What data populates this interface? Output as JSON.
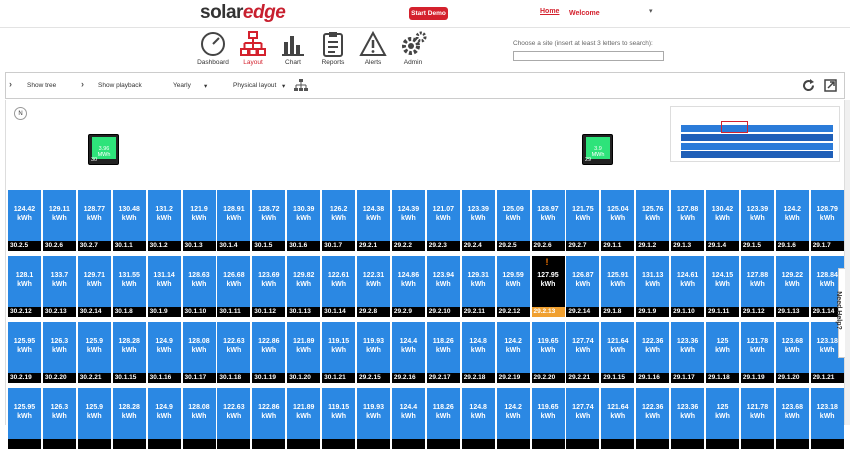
{
  "header": {
    "logo_a": "solar",
    "logo_b": "edge",
    "demo_label": "Start Demo",
    "home_label": "Home",
    "welcome_label": "Welcome",
    "caret": "▾"
  },
  "nav": {
    "items": [
      {
        "label": "Dashboard",
        "icon": "gauge-icon"
      },
      {
        "label": "Layout",
        "icon": "layout-tree-icon"
      },
      {
        "label": "Chart",
        "icon": "bar-chart-icon"
      },
      {
        "label": "Reports",
        "icon": "clipboard-icon"
      },
      {
        "label": "Alerts",
        "icon": "warning-triangle-icon"
      },
      {
        "label": "Admin",
        "icon": "gears-icon"
      }
    ],
    "active": "Layout"
  },
  "site_search": {
    "label": "Choose a site (insert at least 3 letters to search):",
    "value": ""
  },
  "toolbar": {
    "show_tree": "Show tree",
    "show_playback": "Show playback",
    "period": "Yearly",
    "layout_mode": "Physical layout",
    "chev": "›",
    "down": "▾"
  },
  "compass_label": "N",
  "inverters": [
    {
      "energy": "3.96",
      "unit": "MWh",
      "id": "30"
    },
    {
      "energy": "3.9",
      "unit": "MWh",
      "id": "29"
    }
  ],
  "zoom": {
    "center": "⊕",
    "minus": "−",
    "plus": "+"
  },
  "help_label": "Need Help?",
  "panel_unit": "kWh",
  "panels": [
    [
      [
        "124.42",
        "30.2.5"
      ],
      [
        "129.11",
        "30.2.6"
      ],
      [
        "128.77",
        "30.2.7"
      ],
      [
        "130.48",
        "30.1.1"
      ],
      [
        "131.2",
        "30.1.2"
      ],
      [
        "121.9",
        "30.1.3"
      ],
      [
        "128.91",
        "30.1.4"
      ],
      [
        "128.72",
        "30.1.5"
      ],
      [
        "130.39",
        "30.1.6"
      ],
      [
        "126.2",
        "30.1.7"
      ],
      [
        "124.38",
        "29.2.1"
      ],
      [
        "124.39",
        "29.2.2"
      ],
      [
        "121.07",
        "29.2.3"
      ],
      [
        "123.39",
        "29.2.4"
      ],
      [
        "125.09",
        "29.2.5"
      ],
      [
        "128.97",
        "29.2.6"
      ],
      [
        "121.75",
        "29.2.7"
      ],
      [
        "125.04",
        "29.1.1"
      ],
      [
        "125.76",
        "29.1.2"
      ],
      [
        "127.88",
        "29.1.3"
      ],
      [
        "130.42",
        "29.1.4"
      ],
      [
        "123.39",
        "29.1.5"
      ],
      [
        "124.2",
        "29.1.6"
      ],
      [
        "128.79",
        "29.1.7"
      ]
    ],
    [
      [
        "128.1",
        "30.2.12"
      ],
      [
        "133.7",
        "30.2.13"
      ],
      [
        "129.71",
        "30.2.14"
      ],
      [
        "131.55",
        "30.1.8"
      ],
      [
        "131.14",
        "30.1.9"
      ],
      [
        "128.63",
        "30.1.10"
      ],
      [
        "126.68",
        "30.1.11"
      ],
      [
        "123.69",
        "30.1.12"
      ],
      [
        "129.82",
        "30.1.13"
      ],
      [
        "122.61",
        "30.1.14"
      ],
      [
        "122.31",
        "29.2.8"
      ],
      [
        "124.86",
        "29.2.9"
      ],
      [
        "123.94",
        "29.2.10"
      ],
      [
        "129.31",
        "29.2.11"
      ],
      [
        "129.59",
        "29.2.12"
      ],
      [
        "127.95",
        "29.2.13",
        "warn"
      ],
      [
        "126.87",
        "29.2.14"
      ],
      [
        "125.91",
        "29.1.8"
      ],
      [
        "131.13",
        "29.1.9"
      ],
      [
        "124.61",
        "29.1.10"
      ],
      [
        "124.15",
        "29.1.11"
      ],
      [
        "127.88",
        "29.1.12"
      ],
      [
        "129.22",
        "29.1.13"
      ],
      [
        "128.84",
        "29.1.14"
      ]
    ],
    [
      [
        "125.95",
        "30.2.19"
      ],
      [
        "126.3",
        "30.2.20"
      ],
      [
        "125.9",
        "30.2.21"
      ],
      [
        "128.28",
        "30.1.15"
      ],
      [
        "124.9",
        "30.1.16"
      ],
      [
        "128.08",
        "30.1.17"
      ],
      [
        "122.63",
        "30.1.18"
      ],
      [
        "122.86",
        "30.1.19"
      ],
      [
        "121.89",
        "30.1.20"
      ],
      [
        "119.15",
        "30.1.21"
      ],
      [
        "119.93",
        "29.2.15"
      ],
      [
        "124.4",
        "29.2.16"
      ],
      [
        "118.26",
        "29.2.17"
      ],
      [
        "124.8",
        "29.2.18"
      ],
      [
        "124.2",
        "29.2.19"
      ],
      [
        "119.65",
        "29.2.20"
      ],
      [
        "127.74",
        "29.2.21"
      ],
      [
        "121.64",
        "29.1.15"
      ],
      [
        "122.36",
        "29.1.16"
      ],
      [
        "123.36",
        "29.1.17"
      ],
      [
        "125",
        "29.1.18"
      ],
      [
        "121.78",
        "29.1.19"
      ],
      [
        "123.68",
        "29.1.20"
      ],
      [
        "123.18",
        "29.1.21"
      ]
    ],
    [
      [
        "125.95",
        ""
      ],
      [
        "126.3",
        ""
      ],
      [
        "125.9",
        ""
      ],
      [
        "128.28",
        ""
      ],
      [
        "124.9",
        ""
      ],
      [
        "128.08",
        ""
      ],
      [
        "122.63",
        ""
      ],
      [
        "122.86",
        ""
      ],
      [
        "121.89",
        ""
      ],
      [
        "119.15",
        ""
      ],
      [
        "119.93",
        ""
      ],
      [
        "124.4",
        ""
      ],
      [
        "118.26",
        ""
      ],
      [
        "124.8",
        ""
      ],
      [
        "124.2",
        ""
      ],
      [
        "119.65",
        ""
      ],
      [
        "127.74",
        ""
      ],
      [
        "121.64",
        ""
      ],
      [
        "122.36",
        ""
      ],
      [
        "123.36",
        ""
      ],
      [
        "125",
        ""
      ],
      [
        "121.78",
        ""
      ],
      [
        "123.68",
        ""
      ],
      [
        "123.18",
        ""
      ]
    ]
  ]
}
